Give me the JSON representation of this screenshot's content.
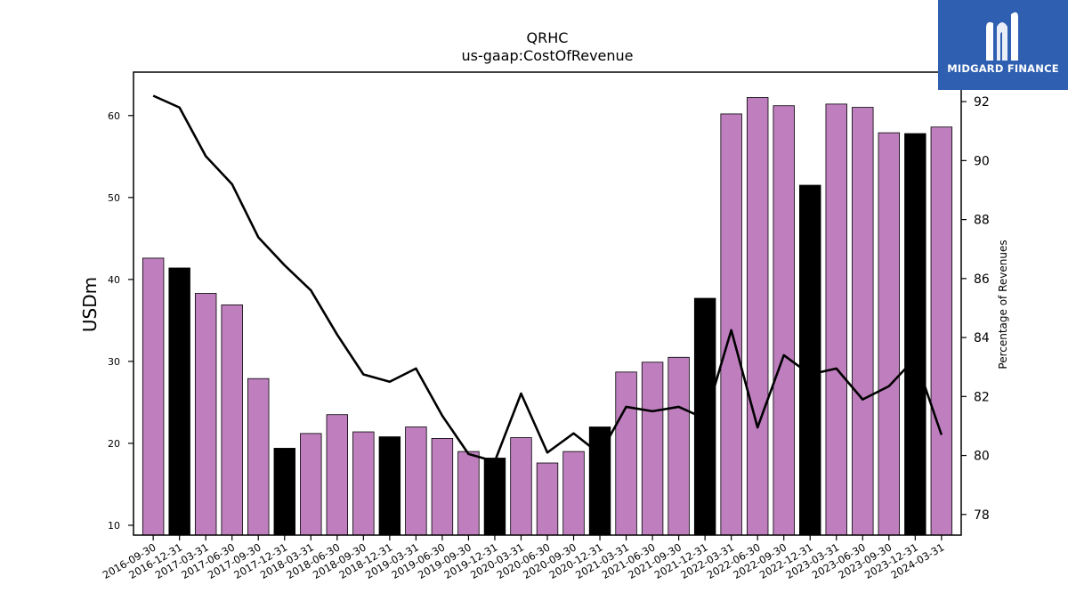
{
  "chart_data": {
    "type": "bar",
    "title": "QRHC",
    "subtitle": "us-gaap:CostOfRevenue",
    "ylabel": "USDm",
    "y2label": "Percentage of Revenues",
    "categories": [
      "2016-09-30",
      "2016-12-31",
      "2017-03-31",
      "2017-06-30",
      "2017-09-30",
      "2017-12-31",
      "2018-03-31",
      "2018-06-30",
      "2018-09-30",
      "2018-12-31",
      "2019-03-31",
      "2019-06-30",
      "2019-09-30",
      "2019-12-31",
      "2020-03-31",
      "2020-06-30",
      "2020-09-30",
      "2020-12-31",
      "2021-03-31",
      "2021-06-30",
      "2021-09-30",
      "2021-12-31",
      "2022-03-31",
      "2022-06-30",
      "2022-09-30",
      "2022-12-31",
      "2023-03-31",
      "2023-06-30",
      "2023-09-30",
      "2023-12-31",
      "2024-03-31"
    ],
    "series": [
      {
        "type": "bar",
        "axis": "left",
        "values": [
          42.6,
          41.4,
          38.3,
          36.9,
          27.9,
          19.4,
          21.2,
          23.5,
          21.4,
          20.8,
          22.0,
          20.6,
          19.0,
          18.2,
          20.7,
          17.6,
          19.0,
          22.0,
          28.7,
          29.9,
          30.5,
          37.7,
          60.2,
          62.2,
          61.2,
          51.5,
          61.4,
          61.0,
          57.9,
          57.8,
          58.6
        ],
        "colors": [
          "#bf7fbf",
          "#000000",
          "#bf7fbf",
          "#bf7fbf",
          "#bf7fbf",
          "#000000",
          "#bf7fbf",
          "#bf7fbf",
          "#bf7fbf",
          "#000000",
          "#bf7fbf",
          "#bf7fbf",
          "#bf7fbf",
          "#000000",
          "#bf7fbf",
          "#bf7fbf",
          "#bf7fbf",
          "#000000",
          "#bf7fbf",
          "#bf7fbf",
          "#bf7fbf",
          "#000000",
          "#bf7fbf",
          "#bf7fbf",
          "#bf7fbf",
          "#000000",
          "#bf7fbf",
          "#bf7fbf",
          "#bf7fbf",
          "#000000",
          "#bf7fbf"
        ]
      },
      {
        "type": "line",
        "axis": "right",
        "color": "#000000",
        "values": [
          92.2,
          91.8,
          90.15,
          89.2,
          87.4,
          86.45,
          85.6,
          84.1,
          82.75,
          82.5,
          82.95,
          81.35,
          80.05,
          79.8,
          82.1,
          80.1,
          80.75,
          80.05,
          81.65,
          81.5,
          81.65,
          81.25,
          84.25,
          80.95,
          83.4,
          82.75,
          82.95,
          81.9,
          82.35,
          83.3,
          80.7
        ]
      }
    ],
    "ylim": [
      8.8,
      65.3
    ],
    "y2lim": [
      77.3,
      93.0
    ],
    "yticks": [
      10,
      20,
      30,
      40,
      50,
      60
    ],
    "y2ticks": [
      78,
      80,
      82,
      84,
      86,
      88,
      90,
      92
    ],
    "grid": false,
    "legend": "none"
  },
  "logo": {
    "text": "MIDGARD FINANCE",
    "bg_color": "#2f5fb0"
  }
}
